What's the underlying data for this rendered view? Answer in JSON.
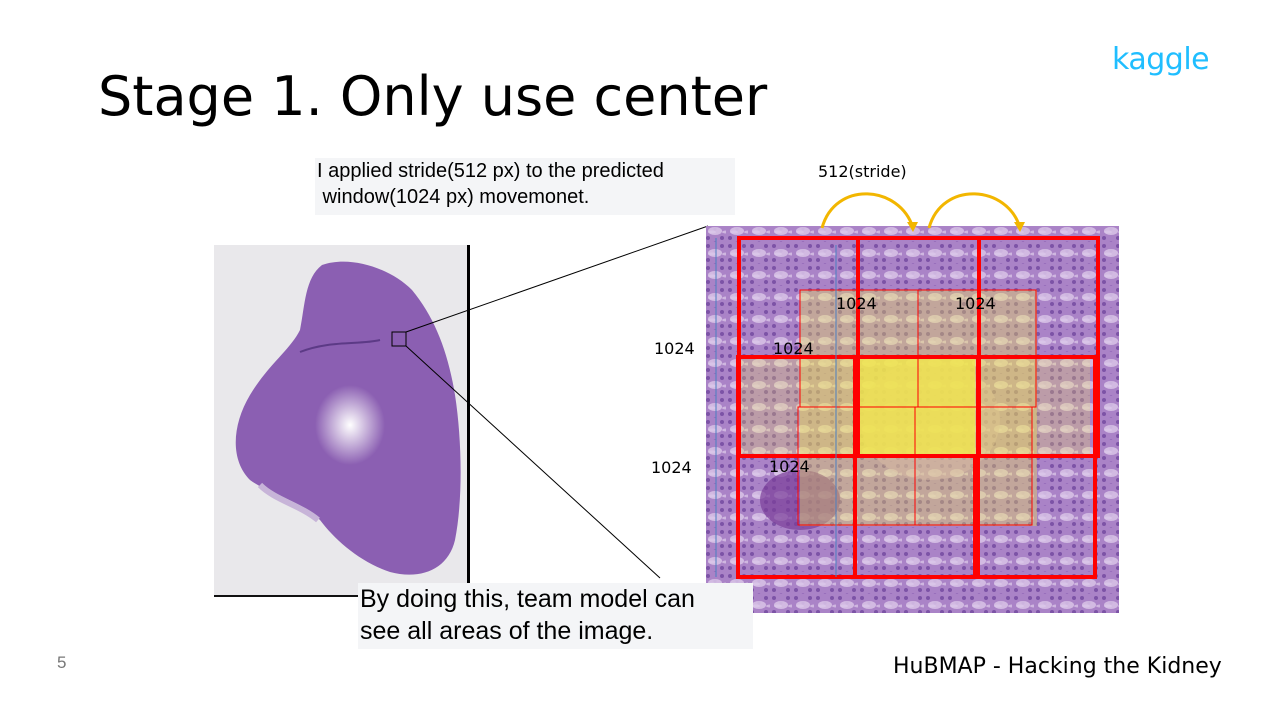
{
  "slide": {
    "title": "Stage 1. Only use center",
    "logo_text": "kaggle",
    "callout_top": "I applied stride(512 px) to the predicted\n window(1024 px) movemonet.",
    "callout_bottom": "By doing this, team model can\nsee all areas of the image.",
    "stride_label": "512(stride)",
    "window_labels": [
      "1024",
      "1024",
      "1024",
      "1024",
      "1024",
      "1024"
    ],
    "page_number": "5",
    "footer": "HuBMAP - Hacking the Kidney"
  },
  "colors": {
    "logo": "#20beff",
    "window_border": "#ff0000",
    "stride_arrow": "#f2b600",
    "tissue": "#8e5fb4",
    "highlight": "#f2e84a"
  }
}
